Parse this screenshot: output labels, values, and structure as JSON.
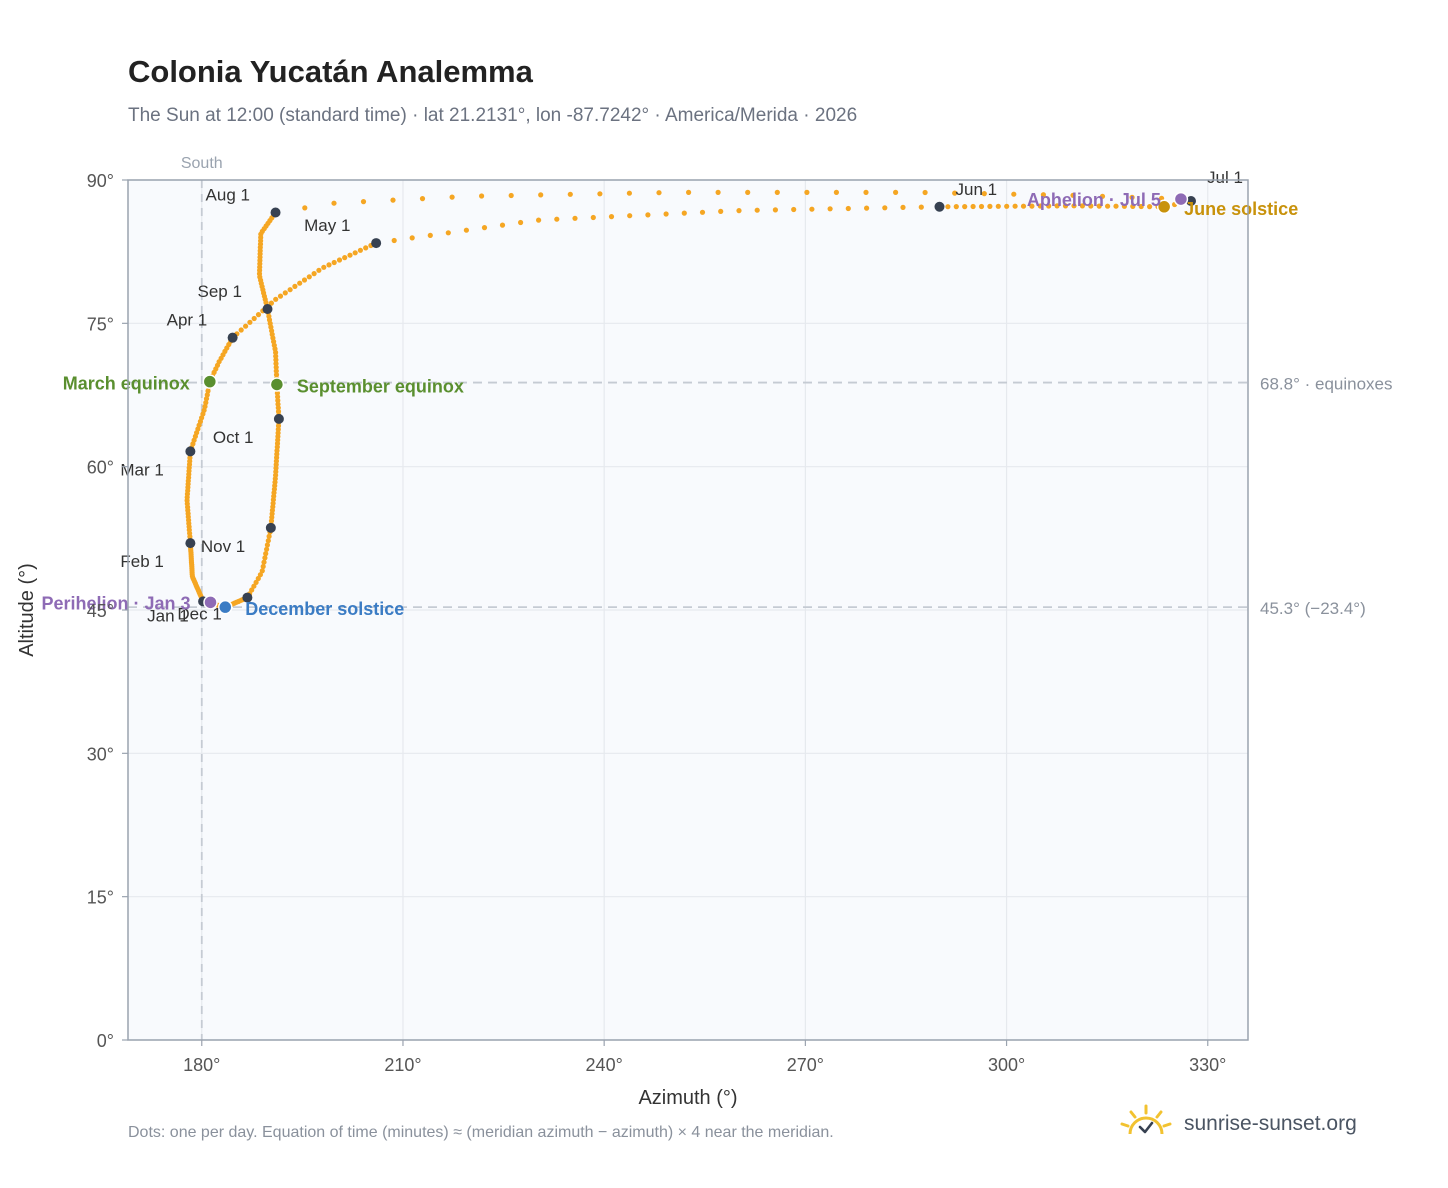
{
  "title": "Colonia Yucatán Analemma",
  "subtitle": "The Sun at 12:00 (standard time) · lat 21.2131°, lon -87.7242° · America/Merida · 2026",
  "footer": "Dots: one per day. Equation of time (minutes) ≈ (meridian azimuth − azimuth) × 4 near the meridian.",
  "brand": {
    "name": "sunrise-sunset.org",
    "icon": "sun-logo-icon",
    "accent": "#f2c230"
  },
  "colors": {
    "dots": "#f5a623",
    "month": "#374151",
    "equinox": "#5a8f2f",
    "december_solstice": "#3b7cc4",
    "june_solstice": "#c8920b",
    "apsis": "#8e6bb5",
    "ref_line": "#c5cbd3",
    "axis": "#9aa3af",
    "grid": "#e6e9ee",
    "plot_bg": "#f8fafd"
  },
  "chart_data": {
    "type": "scatter",
    "xlabel": "Azimuth (°)",
    "ylabel": "Altitude (°)",
    "xlim": [
      169,
      336
    ],
    "ylim": [
      0,
      90
    ],
    "x_ticks": [
      180,
      210,
      240,
      270,
      300,
      330
    ],
    "x_tick_labels": [
      "180°",
      "210°",
      "240°",
      "270°",
      "300°",
      "330°"
    ],
    "y_ticks": [
      0,
      15,
      30,
      45,
      60,
      75,
      90
    ],
    "y_tick_labels": [
      "0°",
      "15°",
      "30°",
      "45°",
      "60°",
      "75°",
      "90°"
    ],
    "grid": true,
    "meridian": {
      "azimuth": 180,
      "label": "South"
    },
    "reference_lines": [
      {
        "altitude": 68.8,
        "label": "68.8° · equinoxes"
      },
      {
        "altitude": 45.3,
        "label": "45.3° (−23.4°)"
      }
    ],
    "months": [
      {
        "label": "Jan 1",
        "az": 180.2,
        "alt": 45.9
      },
      {
        "label": "Feb 1",
        "az": 178.3,
        "alt": 52.0
      },
      {
        "label": "Mar 1",
        "az": 178.3,
        "alt": 61.6
      },
      {
        "label": "Apr 1",
        "az": 184.6,
        "alt": 73.5
      },
      {
        "label": "May 1",
        "az": 206.0,
        "alt": 83.4
      },
      {
        "label": "Jun 1",
        "az": 290.0,
        "alt": 87.2
      },
      {
        "label": "Jul 1",
        "az": 327.5,
        "alt": 87.8
      },
      {
        "label": "Aug 1",
        "az": 191.0,
        "alt": 86.6
      },
      {
        "label": "Sep 1",
        "az": 189.8,
        "alt": 76.5
      },
      {
        "label": "Oct 1",
        "az": 191.5,
        "alt": 65.0
      },
      {
        "label": "Nov 1",
        "az": 190.3,
        "alt": 53.6
      },
      {
        "label": "Dec 1",
        "az": 186.8,
        "alt": 46.3
      }
    ],
    "events": [
      {
        "label": "March equinox",
        "az": 181.2,
        "alt": 68.9,
        "kind": "equinox"
      },
      {
        "label": "September equinox",
        "az": 191.2,
        "alt": 68.6,
        "kind": "equinox"
      },
      {
        "label": "December solstice",
        "az": 183.5,
        "alt": 45.3,
        "kind": "december_solstice"
      },
      {
        "label": "June solstice",
        "az": 323.5,
        "alt": 87.2,
        "kind": "june_solstice"
      },
      {
        "label": "Perihelion · Jan 3",
        "az": 181.3,
        "alt": 45.8,
        "kind": "apsis"
      },
      {
        "label": "Aphelion · Jul 5",
        "az": 326.0,
        "alt": 88.0,
        "kind": "apsis"
      }
    ],
    "path_nodes": [
      [
        186.8,
        46.3
      ],
      [
        183.5,
        45.3
      ],
      [
        180.2,
        45.9
      ],
      [
        178.6,
        48.5
      ],
      [
        178.3,
        52.0
      ],
      [
        177.8,
        56.5
      ],
      [
        178.3,
        61.6
      ],
      [
        180.4,
        66.0
      ],
      [
        181.2,
        68.9
      ],
      [
        182.6,
        71.0
      ],
      [
        184.6,
        73.5
      ],
      [
        191.0,
        77.5
      ],
      [
        198.0,
        80.8
      ],
      [
        206.0,
        83.4
      ],
      [
        230.0,
        85.8
      ],
      [
        260.0,
        86.8
      ],
      [
        290.0,
        87.2
      ],
      [
        310.0,
        87.3
      ],
      [
        323.5,
        87.2
      ],
      [
        327.5,
        87.8
      ],
      [
        326.0,
        88.0
      ],
      [
        310.0,
        88.4
      ],
      [
        287.0,
        88.7
      ],
      [
        250.0,
        88.7
      ],
      [
        220.0,
        88.3
      ],
      [
        200.0,
        87.6
      ],
      [
        191.0,
        86.6
      ],
      [
        188.8,
        84.4
      ],
      [
        188.6,
        80.0
      ],
      [
        189.8,
        76.5
      ],
      [
        191.0,
        72.0
      ],
      [
        191.2,
        68.6
      ],
      [
        191.5,
        65.0
      ],
      [
        191.0,
        59.0
      ],
      [
        190.3,
        53.6
      ],
      [
        189.0,
        49.0
      ],
      [
        186.8,
        46.3
      ]
    ],
    "day_counts": [
      24,
      31,
      28,
      31,
      30,
      31,
      30,
      31,
      31,
      30,
      31,
      17,
      10
    ]
  }
}
